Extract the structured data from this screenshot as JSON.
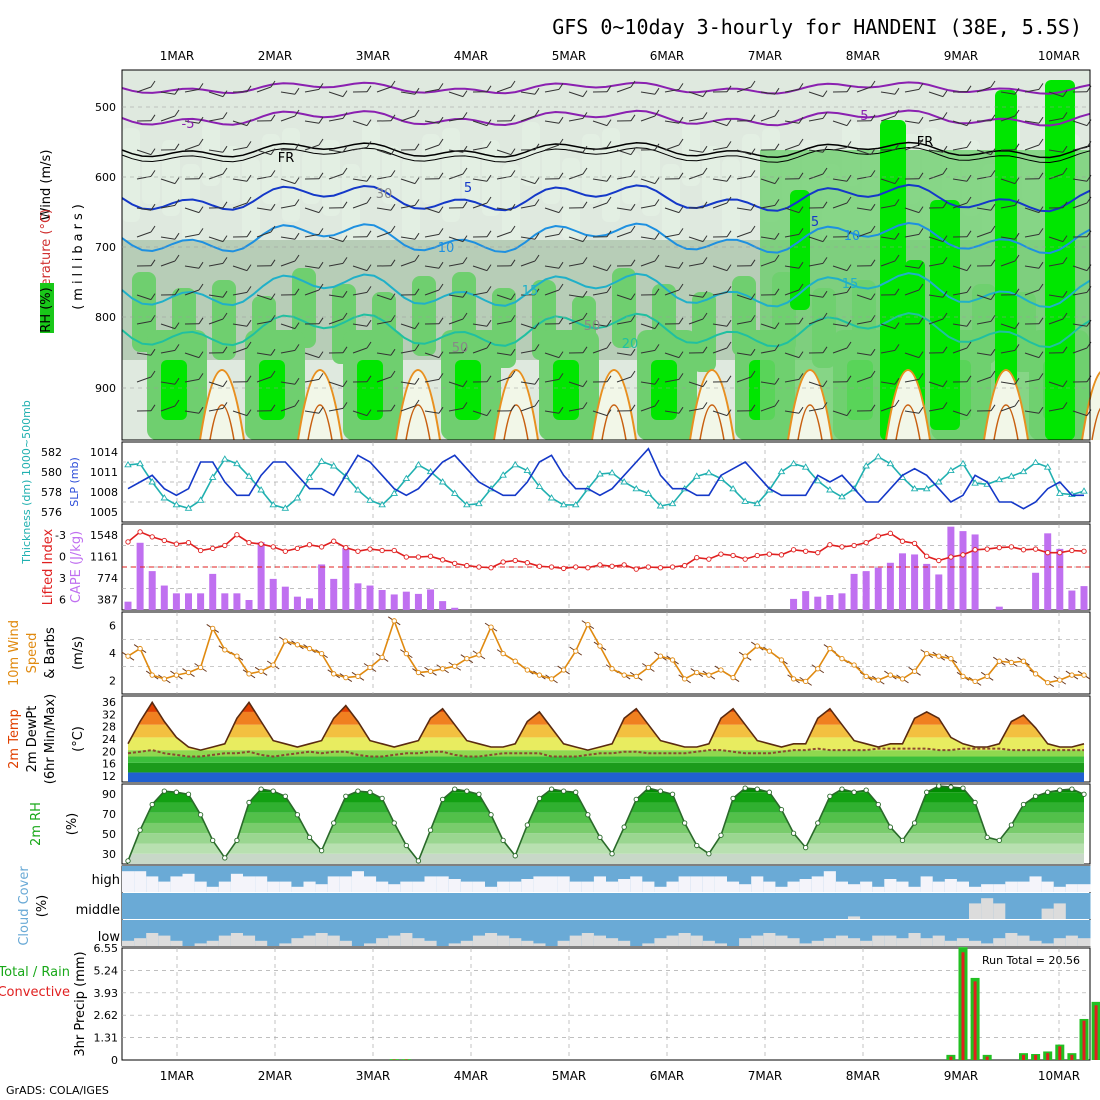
{
  "title": "GFS 0~10day 3-hourly for HANDENI (38E, 5.5S)",
  "credit": "GrADS: COLA/IGES",
  "dates": [
    "1MAR",
    "2MAR",
    "3MAR",
    "4MAR",
    "5MAR",
    "6MAR",
    "7MAR",
    "8MAR",
    "9MAR",
    "10MAR"
  ],
  "colors": {
    "rh_dark": "#00e600",
    "rh_mid": "#6fcf6f",
    "rh_light": "#b7cdb7",
    "rh_pale": "#e3efe3",
    "slp": "#1438c8",
    "thickness": "#20b0b0",
    "lifted": "#e02020",
    "cape": "#c070f0",
    "wind": "#e08a10",
    "temp_hot": "#e04000",
    "green": "#19a819",
    "cloud": "#6aaad6",
    "precip_total": "#22c022",
    "precip_conv": "#e02020"
  },
  "panels": {
    "upper": {
      "ylabel": "(millibars)",
      "legend_wind": "Wind (m/s)",
      "legend_temp": "Temperature (°C)",
      "legend_rh": "RH (%)",
      "yticks": [
        "500",
        "600",
        "700",
        "800",
        "900"
      ],
      "contour_labels": [
        "-5",
        "-5",
        "FR",
        "FR",
        "5",
        "5",
        "10",
        "10",
        "15",
        "15",
        "20",
        "30",
        "50",
        "50"
      ]
    },
    "slp": {
      "label_left": "Thickness (dm) 1000~500mb",
      "label_right": "SLP (mb)",
      "left_ticks": [
        "582",
        "580",
        "578",
        "576"
      ],
      "right_ticks": [
        "1014",
        "1011",
        "1008",
        "1005"
      ]
    },
    "cape": {
      "label_left": "Lifted Index",
      "label_right": "CAPE (J/kg)",
      "left_ticks": [
        "-3",
        "0",
        "3",
        "6"
      ],
      "right_ticks": [
        "1548",
        "1161",
        "774",
        "387"
      ]
    },
    "wind": {
      "label_a": "10m Wind",
      "label_b": "Speed",
      "label_c": "& Barbs",
      "unit": "(m/s)",
      "ticks": [
        "6",
        "4",
        "2"
      ]
    },
    "temp": {
      "label_a": "2m Temp",
      "label_b": "2m DewPt",
      "label_c": "(6hr Min/Max)",
      "unit": "(°C)",
      "ticks": [
        "36",
        "32",
        "28",
        "24",
        "20",
        "16",
        "12"
      ]
    },
    "rh": {
      "label": "2m RH",
      "unit": "(%)",
      "ticks": [
        "90",
        "70",
        "50",
        "30"
      ]
    },
    "cloud": {
      "label": "Cloud Cover",
      "unit": "(%)",
      "rows": [
        "high",
        "middle",
        "low"
      ]
    },
    "precip": {
      "label_a": "Total / Rain",
      "label_b": "Convective",
      "ylabel": "3hr Precip (mm)",
      "ticks": [
        "6.55",
        "5.24",
        "3.93",
        "2.62",
        "1.31",
        "0"
      ],
      "run_total": "Run Total = 20.56"
    }
  },
  "chart_data": {
    "type": "line",
    "x_dates": [
      "1MAR",
      "2MAR",
      "3MAR",
      "4MAR",
      "5MAR",
      "6MAR",
      "7MAR",
      "8MAR",
      "9MAR",
      "10MAR"
    ],
    "steps_per_day": 8,
    "n_steps": 80,
    "slp_mb": [
      1009,
      1010,
      1011,
      1009,
      1008,
      1009,
      1013,
      1013,
      1010,
      1008,
      1008,
      1011,
      1013,
      1013,
      1011,
      1009,
      1009,
      1008,
      1011,
      1014,
      1013,
      1011,
      1009,
      1008,
      1009,
      1011,
      1013,
      1014,
      1012,
      1010,
      1009,
      1008,
      1008,
      1010,
      1013,
      1014,
      1011,
      1009,
      1009,
      1008,
      1009,
      1011,
      1013,
      1015,
      1011,
      1009,
      1009,
      1008,
      1008,
      1011,
      1012,
      1013,
      1011,
      1009,
      1008,
      1008,
      1008,
      1011,
      1010,
      1011,
      1009,
      1007,
      1007,
      1009,
      1011,
      1012,
      1011,
      1009,
      1007,
      1008,
      1011,
      1010,
      1007,
      1007,
      1006,
      1007,
      1009,
      1010,
      1008,
      1008
    ],
    "thickness_dm": [
      580.5,
      580.6,
      579.0,
      577.6,
      577.0,
      576.7,
      577.4,
      579.4,
      581.0,
      580.6,
      579.5,
      578.3,
      577.0,
      576.7,
      577.6,
      579.4,
      580.8,
      580.4,
      579.5,
      578.3,
      577.4,
      577.0,
      578.0,
      579.3,
      580.5,
      579.9,
      579.0,
      578.0,
      577.0,
      577.1,
      578.4,
      579.6,
      580.5,
      580.0,
      578.6,
      577.6,
      577.0,
      577.0,
      578.4,
      579.7,
      579.8,
      579.0,
      578.4,
      578.0,
      576.9,
      577.1,
      578.4,
      579.5,
      579.8,
      579.3,
      578.4,
      577.3,
      577.1,
      578.3,
      579.9,
      580.6,
      580.3,
      579.1,
      578.3,
      577.7,
      578.4,
      580.4,
      581.2,
      580.6,
      579.4,
      578.4,
      578.4,
      579.0,
      580.0,
      580.6,
      578.9,
      578.8,
      579.2,
      579.5,
      579.9,
      580.7,
      580.3,
      578.0,
      577.9,
      578.2
    ],
    "lifted_index": [
      -3.5,
      -4.9,
      -4.2,
      -3.7,
      -3.2,
      -3.4,
      -2.3,
      -2.6,
      -3.0,
      -4.5,
      -3.4,
      -3.2,
      -2.8,
      -2.2,
      -2.6,
      -3.1,
      -2.8,
      -3.6,
      -2.7,
      -2.2,
      -2.5,
      -2.3,
      -2.3,
      -1.4,
      -1.4,
      -1.5,
      -1.0,
      -0.5,
      -0.2,
      0.0,
      0.1,
      -0.7,
      -0.9,
      -0.6,
      -0.1,
      0.0,
      0.2,
      0.0,
      0.1,
      -0.3,
      -0.1,
      -0.3,
      0.3,
      0.0,
      0.1,
      0.0,
      -0.2,
      -1.3,
      -1.1,
      -1.8,
      -1.6,
      -1.1,
      -1.6,
      -1.8,
      -1.7,
      -2.4,
      -2.2,
      -2.0,
      -3.1,
      -2.8,
      -3.0,
      -3.4,
      -4.3,
      -4.7,
      -3.6,
      -3.3,
      -1.5,
      -0.9,
      -1.4,
      -1.7,
      -2.4,
      -2.5,
      -2.7,
      -2.8,
      -2.4,
      -2.5,
      -2.0,
      -2.0,
      -2.3,
      -2.2
    ],
    "cape_jkg": [
      150,
      1210,
      700,
      440,
      300,
      300,
      300,
      650,
      300,
      300,
      180,
      1220,
      560,
      420,
      240,
      210,
      820,
      560,
      1120,
      480,
      440,
      360,
      280,
      330,
      290,
      370,
      160,
      40,
      0,
      0,
      0,
      0,
      0,
      0,
      0,
      0,
      0,
      0,
      0,
      0,
      0,
      0,
      0,
      0,
      0,
      0,
      0,
      0,
      0,
      0,
      0,
      0,
      0,
      0,
      0,
      200,
      340,
      240,
      270,
      300,
      650,
      700,
      760,
      850,
      1020,
      1000,
      830,
      640,
      1500,
      1420,
      1360,
      0,
      60,
      0,
      0,
      670,
      1380,
      1100,
      350,
      430
    ],
    "wind_speed_ms": [
      3,
      3.6,
      1.5,
      1.2,
      1.5,
      1.7,
      2.1,
      5.2,
      3.5,
      3.0,
      1.6,
      1.8,
      2.3,
      4.2,
      3.9,
      3.6,
      3.2,
      1.6,
      1.3,
      1.4,
      2.1,
      2.9,
      5.8,
      3.2,
      1.7,
      1.8,
      2.0,
      2.2,
      2.8,
      3.1,
      5.3,
      3.2,
      2.6,
      1.9,
      1.5,
      1.2,
      1.9,
      3.4,
      5.5,
      3.8,
      2.0,
      1.5,
      1.4,
      2.1,
      3.0,
      2.7,
      1.2,
      1.7,
      1.5,
      1.9,
      1.3,
      3.0,
      3.8,
      3.4,
      2.7,
      1.2,
      1.0,
      2.0,
      3.6,
      2.8,
      2.3,
      1.4,
      1.1,
      1.5,
      1.2,
      1.8,
      3.2,
      3.0,
      2.8,
      1.4,
      1.0,
      1.4,
      2.6,
      2.5,
      2.6,
      1.6,
      0.9,
      1.1,
      1.5,
      1.5
    ],
    "temp_c": [
      22,
      29,
      35,
      29,
      24,
      21,
      20,
      21,
      22,
      30,
      35,
      29,
      23,
      22,
      21,
      22,
      23,
      30,
      34,
      29,
      23,
      22,
      21,
      22,
      23,
      30,
      33,
      28,
      23,
      22,
      21,
      21,
      22,
      29,
      32,
      27,
      22,
      21,
      20,
      21,
      22,
      30,
      33,
      28,
      23,
      22,
      21,
      21,
      22,
      30,
      33,
      28,
      23,
      22,
      21,
      22,
      22,
      30,
      33,
      28,
      23,
      22,
      21,
      22,
      22,
      30,
      32,
      30,
      24,
      22,
      21,
      21,
      22,
      29,
      31,
      27,
      22,
      21,
      21,
      22
    ],
    "dewpt_c": [
      19,
      19.5,
      20,
      19,
      18.5,
      18,
      18,
      18.5,
      19,
      19,
      19.5,
      18.5,
      18,
      18.5,
      19,
      19.5,
      19,
      19.5,
      19.5,
      18.5,
      18,
      18,
      18.5,
      19,
      19,
      19.5,
      19.5,
      18.5,
      18,
      18,
      18.5,
      19,
      19,
      19,
      19,
      18,
      18,
      18,
      18.5,
      19,
      19,
      19.5,
      19.5,
      19,
      19,
      19,
      19,
      19.5,
      20,
      20,
      19.5,
      19,
      19,
      19,
      19.5,
      20,
      20,
      20.5,
      20,
      20,
      20,
      20,
      20.5,
      20.5,
      20.5,
      20.5,
      20.5,
      20,
      20,
      20.5,
      20.5,
      20.5,
      20.5,
      20,
      20,
      20,
      20,
      20,
      20,
      20
    ],
    "rh_pct": [
      25,
      55,
      80,
      93,
      92,
      90,
      70,
      45,
      28,
      45,
      82,
      95,
      93,
      88,
      70,
      48,
      35,
      62,
      88,
      93,
      92,
      86,
      62,
      40,
      25,
      55,
      85,
      95,
      93,
      90,
      70,
      45,
      30,
      60,
      86,
      95,
      93,
      92,
      70,
      48,
      32,
      58,
      85,
      96,
      93,
      90,
      62,
      40,
      32,
      50,
      86,
      96,
      95,
      92,
      75,
      52,
      38,
      62,
      88,
      95,
      92,
      94,
      80,
      58,
      45,
      62,
      92,
      98,
      97,
      96,
      82,
      48,
      45,
      60,
      80,
      88,
      92,
      94,
      95,
      90
    ],
    "cloud_high_pct": [
      80,
      80,
      60,
      40,
      60,
      70,
      40,
      20,
      40,
      70,
      60,
      60,
      40,
      40,
      20,
      40,
      30,
      60,
      60,
      80,
      60,
      40,
      30,
      40,
      40,
      60,
      60,
      50,
      40,
      40,
      20,
      40,
      40,
      50,
      60,
      60,
      60,
      40,
      40,
      60,
      40,
      50,
      60,
      40,
      20,
      40,
      60,
      60,
      60,
      60,
      40,
      30,
      60,
      40,
      20,
      40,
      50,
      60,
      80,
      40,
      30,
      40,
      20,
      50,
      40,
      20,
      60,
      40,
      50,
      40,
      20,
      30,
      30,
      40,
      40,
      60,
      40,
      20,
      30,
      30
    ],
    "cloud_middle_pct": [
      0,
      0,
      0,
      0,
      0,
      0,
      0,
      0,
      0,
      0,
      0,
      0,
      0,
      0,
      0,
      0,
      0,
      0,
      0,
      0,
      0,
      0,
      0,
      0,
      0,
      0,
      0,
      0,
      0,
      0,
      0,
      0,
      0,
      0,
      0,
      0,
      0,
      0,
      0,
      0,
      0,
      0,
      0,
      0,
      0,
      0,
      0,
      0,
      0,
      0,
      0,
      0,
      0,
      0,
      0,
      0,
      0,
      0,
      0,
      0,
      10,
      0,
      0,
      0,
      0,
      0,
      0,
      0,
      0,
      0,
      60,
      80,
      60,
      0,
      0,
      0,
      40,
      60,
      0,
      0
    ],
    "cloud_low_pct": [
      20,
      30,
      50,
      40,
      20,
      0,
      10,
      20,
      40,
      50,
      40,
      20,
      0,
      10,
      30,
      40,
      50,
      40,
      20,
      0,
      10,
      30,
      40,
      50,
      30,
      20,
      0,
      10,
      20,
      40,
      50,
      40,
      30,
      20,
      10,
      0,
      20,
      40,
      50,
      40,
      30,
      20,
      0,
      10,
      30,
      40,
      50,
      40,
      20,
      10,
      0,
      30,
      40,
      50,
      40,
      30,
      10,
      20,
      30,
      40,
      30,
      20,
      40,
      40,
      30,
      50,
      30,
      40,
      20,
      30,
      20,
      10,
      30,
      50,
      40,
      20,
      10,
      30,
      40,
      30
    ],
    "precip_total_mm": [
      0,
      0,
      0,
      0,
      0,
      0,
      0,
      0,
      0,
      0,
      0,
      0,
      0,
      0,
      0,
      0,
      0,
      0,
      0,
      0,
      0,
      0,
      0.05,
      0.05,
      0,
      0,
      0,
      0,
      0,
      0,
      0,
      0,
      0,
      0,
      0,
      0,
      0,
      0,
      0,
      0,
      0,
      0,
      0,
      0,
      0,
      0,
      0,
      0,
      0,
      0,
      0,
      0,
      0,
      0,
      0,
      0,
      0,
      0,
      0,
      0,
      0,
      0,
      0,
      0,
      0,
      0,
      0,
      0,
      0.3,
      6.6,
      4.8,
      0.3,
      0,
      0,
      0.4,
      0.35,
      0.5,
      0.9,
      0.4,
      2.4,
      3.4
    ],
    "precip_conv_mm": [
      0,
      0,
      0,
      0,
      0,
      0,
      0,
      0,
      0,
      0,
      0,
      0,
      0,
      0,
      0,
      0,
      0,
      0,
      0,
      0,
      0,
      0,
      0.03,
      0.03,
      0,
      0,
      0,
      0,
      0,
      0,
      0,
      0,
      0,
      0,
      0,
      0,
      0,
      0,
      0,
      0,
      0,
      0,
      0,
      0,
      0,
      0,
      0,
      0,
      0,
      0,
      0,
      0,
      0,
      0,
      0,
      0,
      0,
      0,
      0,
      0,
      0,
      0,
      0,
      0,
      0,
      0,
      0,
      0,
      0.2,
      6.3,
      4.6,
      0.2,
      0,
      0,
      0.3,
      0.3,
      0.4,
      0.8,
      0.3,
      2.3,
      3.2
    ],
    "slp_range": [
      1004,
      1016
    ],
    "thickness_range": [
      575.5,
      582.5
    ],
    "lifted_range": [
      6,
      -6
    ],
    "cape_range": [
      0,
      1548
    ],
    "wind_range": [
      0,
      6.5
    ],
    "temp_range": [
      10,
      37
    ],
    "rh_range": [
      22,
      100
    ],
    "precip_range": [
      0,
      6.55
    ]
  }
}
